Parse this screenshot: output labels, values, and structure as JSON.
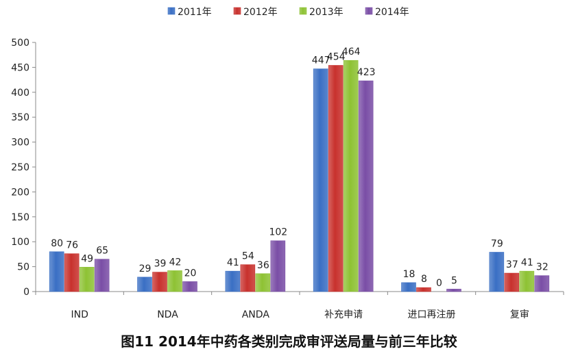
{
  "chart_data": {
    "type": "bar",
    "title": "图11 2014年中药各类别完成审评送局量与前三年比较",
    "xlabel": "",
    "ylabel": "",
    "categories": [
      "IND",
      "NDA",
      "ANDA",
      "补充申请",
      "进口再注册",
      "复审"
    ],
    "ylim": [
      0,
      500
    ],
    "yticks": [
      0,
      50,
      100,
      150,
      200,
      250,
      300,
      350,
      400,
      450,
      500
    ],
    "grid": false,
    "legend": "top",
    "series": [
      {
        "name": "2011年",
        "color": "#3a6fc4",
        "values": [
          80,
          29,
          41,
          447,
          18,
          79
        ]
      },
      {
        "name": "2012年",
        "color": "#c8312d",
        "values": [
          76,
          39,
          54,
          454,
          8,
          37
        ]
      },
      {
        "name": "2013年",
        "color": "#8ec234",
        "values": [
          49,
          42,
          36,
          464,
          0,
          41
        ]
      },
      {
        "name": "2014年",
        "color": "#7a4ea6",
        "values": [
          65,
          20,
          102,
          423,
          5,
          32
        ]
      }
    ]
  }
}
